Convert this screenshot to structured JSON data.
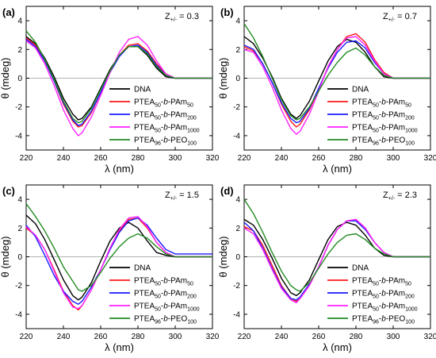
{
  "series_style": [
    {
      "color": "#000000"
    },
    {
      "color": "#ff1a1a"
    },
    {
      "color": "#1a1aff"
    },
    {
      "color": "#ff22ff"
    },
    {
      "color": "#228b22"
    }
  ],
  "legend_entries": [
    {
      "label": "DNA",
      "parts": [
        {
          "t": "DNA"
        }
      ]
    },
    {
      "label": "PTEA50-b-PAm50",
      "parts": [
        {
          "t": "PTEA"
        },
        {
          "t": "50",
          "sub": true
        },
        {
          "t": "-"
        },
        {
          "t": "b",
          "i": true
        },
        {
          "t": "-PAm"
        },
        {
          "t": "50",
          "sub": true
        }
      ]
    },
    {
      "label": "PTEA50-b-PAm200",
      "parts": [
        {
          "t": "PTEA"
        },
        {
          "t": "50",
          "sub": true
        },
        {
          "t": "-"
        },
        {
          "t": "b",
          "i": true
        },
        {
          "t": "-PAm"
        },
        {
          "t": "200",
          "sub": true
        }
      ]
    },
    {
      "label": "PTEA50-b-PAm1000",
      "parts": [
        {
          "t": "PTEA"
        },
        {
          "t": "50",
          "sub": true
        },
        {
          "t": "-"
        },
        {
          "t": "b",
          "i": true
        },
        {
          "t": "-PAm"
        },
        {
          "t": "1000",
          "sub": true
        }
      ]
    },
    {
      "label": "PTEA96-b-PEO100",
      "parts": [
        {
          "t": "PTEA"
        },
        {
          "t": "96",
          "sub": true
        },
        {
          "t": "-"
        },
        {
          "t": "b",
          "i": true
        },
        {
          "t": "-PEO"
        },
        {
          "t": "100",
          "sub": true
        }
      ]
    }
  ],
  "chart_data": [
    {
      "type": "line",
      "panel": "(a)",
      "z_label": "Z+/- = 0.3",
      "xlabel": "λ (nm)",
      "ylabel": "θ (mdeg)",
      "xlim": [
        220,
        320
      ],
      "ylim": [
        -5,
        5
      ],
      "xticks": [
        220,
        240,
        260,
        280,
        300,
        320
      ],
      "yticks": [
        -4,
        -2,
        0,
        2,
        4
      ],
      "x": [
        220,
        225,
        230,
        235,
        240,
        245,
        248,
        250,
        255,
        260,
        265,
        270,
        275,
        280,
        285,
        290,
        295,
        300,
        305,
        310,
        315,
        320
      ],
      "series": [
        {
          "name": "DNA",
          "values": [
            2.9,
            2.4,
            1.4,
            0.1,
            -1.4,
            -2.5,
            -2.9,
            -2.8,
            -2.0,
            -0.7,
            0.6,
            1.6,
            2.2,
            2.2,
            1.6,
            0.7,
            0.1,
            0.0,
            0.0,
            0.0,
            0.0,
            0.0
          ]
        },
        {
          "name": "PTEA50-b-PAm50",
          "values": [
            2.8,
            2.3,
            1.2,
            -0.2,
            -1.8,
            -3.0,
            -3.4,
            -3.3,
            -2.4,
            -1.0,
            0.4,
            1.6,
            2.3,
            2.4,
            1.9,
            1.0,
            0.3,
            0.0,
            0.0,
            0.0,
            0.0,
            0.0
          ]
        },
        {
          "name": "PTEA50-b-PAm200",
          "values": [
            2.7,
            2.2,
            1.2,
            -0.2,
            -1.7,
            -2.9,
            -3.3,
            -3.2,
            -2.3,
            -1.0,
            0.4,
            1.5,
            2.2,
            2.3,
            1.8,
            0.9,
            0.2,
            0.0,
            0.0,
            0.0,
            0.0,
            0.0
          ]
        },
        {
          "name": "PTEA50-b-PAm1000",
          "values": [
            2.6,
            2.1,
            1.0,
            -0.5,
            -2.2,
            -3.5,
            -4.0,
            -3.8,
            -2.7,
            -1.2,
            0.4,
            1.8,
            2.7,
            2.9,
            2.3,
            1.2,
            0.3,
            0.0,
            0.0,
            0.0,
            0.0,
            0.0
          ]
        },
        {
          "name": "PTEA96-b-PEO100",
          "values": [
            3.3,
            2.5,
            1.3,
            -0.1,
            -1.6,
            -2.8,
            -3.1,
            -3.0,
            -2.1,
            -0.8,
            0.5,
            1.6,
            2.2,
            2.2,
            1.7,
            0.8,
            0.2,
            0.0,
            0.0,
            0.0,
            0.0,
            0.0
          ]
        }
      ]
    },
    {
      "type": "line",
      "panel": "(b)",
      "z_label": "Z+/- = 0.7",
      "xlabel": "λ (nm)",
      "ylabel": "θ (mdeg)",
      "xlim": [
        220,
        320
      ],
      "ylim": [
        -5,
        5
      ],
      "xticks": [
        220,
        240,
        260,
        280,
        300,
        320
      ],
      "yticks": [
        -4,
        -2,
        0,
        2,
        4
      ],
      "x": [
        220,
        225,
        230,
        235,
        240,
        245,
        248,
        250,
        255,
        260,
        265,
        270,
        275,
        280,
        285,
        290,
        295,
        300,
        305,
        310,
        315,
        320
      ],
      "series": [
        {
          "name": "DNA",
          "values": [
            2.9,
            2.4,
            1.4,
            0.1,
            -1.4,
            -2.5,
            -2.8,
            -2.6,
            -1.6,
            -0.2,
            1.2,
            2.2,
            2.7,
            2.5,
            1.8,
            0.8,
            0.1,
            0.0,
            0.0,
            0.0,
            0.0,
            0.0
          ]
        },
        {
          "name": "PTEA50-b-PAm50",
          "values": [
            2.2,
            1.9,
            1.0,
            -0.3,
            -1.8,
            -3.0,
            -3.4,
            -3.2,
            -2.2,
            -0.8,
            0.8,
            2.0,
            2.9,
            3.1,
            2.5,
            1.3,
            0.4,
            0.0,
            0.0,
            0.0,
            0.0,
            0.0
          ]
        },
        {
          "name": "PTEA50-b-PAm200",
          "values": [
            2.3,
            2.0,
            1.0,
            -0.3,
            -1.7,
            -2.8,
            -3.1,
            -3.0,
            -2.1,
            -0.7,
            0.7,
            1.8,
            2.5,
            2.6,
            2.1,
            1.1,
            0.3,
            0.0,
            0.0,
            0.0,
            0.0,
            0.0
          ]
        },
        {
          "name": "PTEA50-b-PAm1000",
          "values": [
            2.0,
            1.8,
            0.8,
            -0.6,
            -2.2,
            -3.5,
            -3.9,
            -3.7,
            -2.5,
            -0.9,
            0.8,
            2.0,
            2.8,
            2.9,
            2.3,
            1.2,
            0.3,
            0.0,
            0.0,
            0.0,
            0.0,
            0.0
          ]
        },
        {
          "name": "PTEA96-b-PEO100",
          "values": [
            3.8,
            2.8,
            1.5,
            0.0,
            -1.5,
            -2.6,
            -2.9,
            -2.8,
            -2.0,
            -0.9,
            0.2,
            1.1,
            1.8,
            2.1,
            1.6,
            0.8,
            0.2,
            0.0,
            0.0,
            0.0,
            0.0,
            0.0
          ]
        }
      ]
    },
    {
      "type": "line",
      "panel": "(c)",
      "z_label": "Z+/- = 1.5",
      "xlabel": "λ (nm)",
      "ylabel": "θ (mdeg)",
      "xlim": [
        220,
        320
      ],
      "ylim": [
        -5,
        5
      ],
      "xticks": [
        220,
        240,
        260,
        280,
        300,
        320
      ],
      "yticks": [
        -4,
        -2,
        0,
        2,
        4
      ],
      "x": [
        220,
        225,
        230,
        235,
        240,
        245,
        248,
        250,
        255,
        260,
        265,
        270,
        275,
        280,
        285,
        290,
        295,
        300,
        305,
        310,
        315,
        320
      ],
      "series": [
        {
          "name": "DNA",
          "values": [
            2.9,
            2.3,
            1.2,
            -0.2,
            -1.6,
            -2.7,
            -3.0,
            -2.8,
            -1.8,
            -0.3,
            1.1,
            2.0,
            2.4,
            2.0,
            1.1,
            0.3,
            0.1,
            0.0,
            0.0,
            0.0,
            0.0,
            0.0
          ]
        },
        {
          "name": "PTEA50-b-PAm50",
          "values": [
            2.0,
            1.5,
            0.5,
            -0.9,
            -2.4,
            -3.4,
            -3.7,
            -3.4,
            -2.3,
            -0.9,
            0.6,
            1.8,
            2.6,
            2.7,
            2.0,
            1.0,
            0.3,
            0.0,
            0.0,
            0.0,
            0.0,
            0.0
          ]
        },
        {
          "name": "PTEA50-b-PAm200",
          "values": [
            2.2,
            1.4,
            0.1,
            -1.3,
            -2.4,
            -3.1,
            -3.3,
            -3.1,
            -2.1,
            -0.9,
            0.5,
            1.7,
            2.5,
            2.7,
            2.2,
            1.3,
            0.5,
            0.2,
            0.2,
            0.2,
            0.2,
            0.2
          ]
        },
        {
          "name": "PTEA50-b-PAm1000",
          "values": [
            2.1,
            1.5,
            0.5,
            -1.0,
            -2.5,
            -3.5,
            -3.6,
            -3.4,
            -2.3,
            -0.9,
            0.6,
            1.9,
            2.7,
            2.8,
            2.1,
            1.0,
            0.3,
            0.0,
            0.0,
            0.0,
            0.0,
            0.0
          ]
        },
        {
          "name": "PTEA96-b-PEO100",
          "values": [
            3.7,
            2.8,
            1.8,
            0.6,
            -0.7,
            -1.7,
            -2.3,
            -2.4,
            -2.0,
            -1.1,
            -0.1,
            0.7,
            1.3,
            1.6,
            1.3,
            0.7,
            0.2,
            0.0,
            0.0,
            0.0,
            0.0,
            0.0
          ]
        }
      ]
    },
    {
      "type": "line",
      "panel": "(d)",
      "z_label": "Z+/- = 2.3",
      "xlabel": "λ (nm)",
      "ylabel": "θ (mdeg)",
      "xlim": [
        220,
        320
      ],
      "ylim": [
        -5,
        5
      ],
      "xticks": [
        220,
        240,
        260,
        280,
        300,
        320
      ],
      "yticks": [
        -4,
        -2,
        0,
        2,
        4
      ],
      "x": [
        220,
        225,
        230,
        235,
        240,
        245,
        248,
        250,
        255,
        260,
        265,
        270,
        275,
        280,
        285,
        290,
        295,
        300,
        305,
        310,
        315,
        320
      ],
      "series": [
        {
          "name": "DNA",
          "values": [
            2.6,
            2.2,
            1.2,
            -0.1,
            -1.5,
            -2.5,
            -2.7,
            -2.5,
            -1.6,
            -0.2,
            1.2,
            2.1,
            2.4,
            2.2,
            1.5,
            0.6,
            0.1,
            0.0,
            0.0,
            0.0,
            0.0,
            0.0
          ]
        },
        {
          "name": "PTEA50-b-PAm50",
          "values": [
            2.1,
            1.8,
            0.8,
            -0.6,
            -2.0,
            -2.9,
            -3.1,
            -2.9,
            -2.0,
            -0.7,
            0.8,
            1.9,
            2.5,
            2.6,
            2.0,
            1.0,
            0.3,
            0.0,
            0.0,
            0.0,
            0.0,
            0.0
          ]
        },
        {
          "name": "PTEA50-b-PAm200",
          "values": [
            2.4,
            1.8,
            0.6,
            -0.8,
            -2.1,
            -2.9,
            -3.0,
            -2.8,
            -1.9,
            -0.7,
            0.8,
            1.9,
            2.5,
            2.5,
            1.9,
            1.0,
            0.3,
            0.0,
            0.0,
            0.0,
            0.0,
            0.0
          ]
        },
        {
          "name": "PTEA50-b-PAm1000",
          "values": [
            2.0,
            1.6,
            0.5,
            -0.9,
            -2.2,
            -3.0,
            -3.2,
            -2.9,
            -2.0,
            -0.7,
            0.8,
            1.9,
            2.5,
            2.6,
            2.0,
            1.0,
            0.3,
            0.0,
            0.0,
            0.0,
            0.0,
            0.0
          ]
        },
        {
          "name": "PTEA96-b-PEO100",
          "values": [
            4.0,
            3.0,
            1.7,
            0.3,
            -1.0,
            -2.0,
            -2.3,
            -2.4,
            -1.8,
            -0.8,
            0.2,
            1.0,
            1.5,
            1.6,
            1.2,
            0.6,
            0.2,
            0.0,
            0.0,
            0.0,
            0.0,
            0.0
          ]
        }
      ]
    }
  ]
}
